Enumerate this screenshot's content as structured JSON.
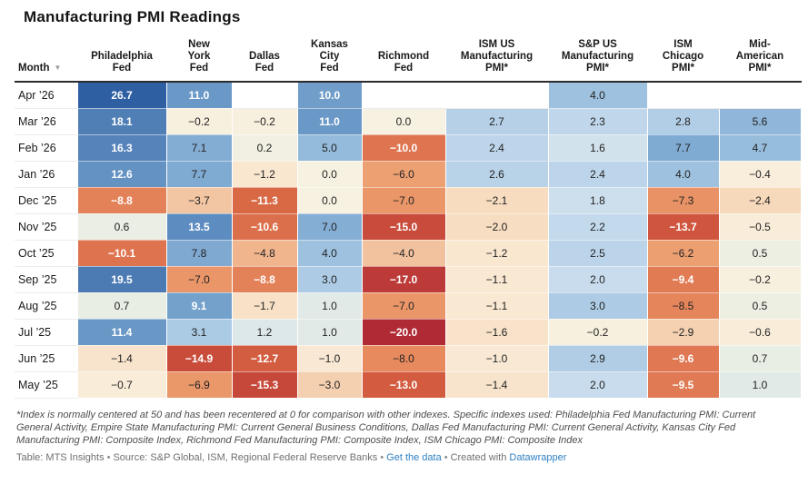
{
  "title": "Manufacturing PMI Readings",
  "colors": {
    "link": "#2f80c3",
    "header_border": "#2b2b2b",
    "row_border": "#ececec",
    "text_dark": "#232323",
    "text_white": "#ffffff",
    "footnote_text": "#4d4d4d",
    "footer_text": "#707070",
    "sort_arrow": "#9a9a9a"
  },
  "table_header": {
    "month_label": "Month",
    "sort_icon": "▼"
  },
  "chart_data": {
    "type": "table",
    "title": "Manufacturing PMI Readings",
    "columns": [
      "Month",
      "Philadelphia\nFed",
      "New\nYork\nFed",
      "Dallas\nFed",
      "Kansas\nCity\nFed",
      "Richmond\nFed",
      "ISM US\nManufacturing\nPMI*",
      "S&P US\nManufacturing\nPMI*",
      "ISM\nChicago\nPMI*",
      "Mid-\nAmerican\nPMI*"
    ],
    "rows": [
      {
        "month": "Apr ’26",
        "values": [
          26.7,
          11.0,
          null,
          10.0,
          null,
          null,
          4.0,
          null,
          null
        ]
      },
      {
        "month": "Mar ’26",
        "values": [
          18.1,
          -0.2,
          -0.2,
          11.0,
          0.0,
          2.7,
          2.3,
          2.8,
          5.6
        ]
      },
      {
        "month": "Feb ’26",
        "values": [
          16.3,
          7.1,
          0.2,
          5.0,
          -10.0,
          2.4,
          1.6,
          7.7,
          4.7
        ]
      },
      {
        "month": "Jan ’26",
        "values": [
          12.6,
          7.7,
          -1.2,
          0.0,
          -6.0,
          2.6,
          2.4,
          4.0,
          -0.4
        ]
      },
      {
        "month": "Dec ’25",
        "values": [
          -8.8,
          -3.7,
          -11.3,
          0.0,
          -7.0,
          -2.1,
          1.8,
          -7.3,
          -2.4
        ]
      },
      {
        "month": "Nov ’25",
        "values": [
          0.6,
          13.5,
          -10.6,
          7.0,
          -15.0,
          -2.0,
          2.2,
          -13.7,
          -0.5
        ]
      },
      {
        "month": "Oct ’25",
        "values": [
          -10.1,
          7.8,
          -4.8,
          4.0,
          -4.0,
          -1.2,
          2.5,
          -6.2,
          0.5
        ]
      },
      {
        "month": "Sep ’25",
        "values": [
          19.5,
          -7.0,
          -8.8,
          3.0,
          -17.0,
          -1.1,
          2.0,
          -9.4,
          -0.2
        ]
      },
      {
        "month": "Aug ’25",
        "values": [
          0.7,
          9.1,
          -1.7,
          1.0,
          -7.0,
          -1.1,
          3.0,
          -8.5,
          0.5
        ]
      },
      {
        "month": "Jul ’25",
        "values": [
          11.4,
          3.1,
          1.2,
          1.0,
          -20.0,
          -1.6,
          -0.2,
          -2.9,
          -0.6
        ]
      },
      {
        "month": "Jun ’25",
        "values": [
          -1.4,
          -14.9,
          -12.7,
          -1.0,
          -8.0,
          -1.0,
          2.9,
          -9.6,
          0.7
        ]
      },
      {
        "month": "May ’25",
        "values": [
          -0.7,
          -6.9,
          -15.3,
          -3.0,
          -13.0,
          -1.4,
          2.0,
          -9.5,
          1.0
        ]
      }
    ],
    "color_scale": {
      "type": "diverging",
      "stops": [
        [
          -20,
          "#b02a35"
        ],
        [
          -17,
          "#bc3a38"
        ],
        [
          -15,
          "#c84b3b"
        ],
        [
          -13,
          "#d25b40"
        ],
        [
          -12,
          "#d6633f"
        ],
        [
          -10,
          "#de7450"
        ],
        [
          -8,
          "#e78a5e"
        ],
        [
          -6,
          "#eda173"
        ],
        [
          -4,
          "#f2c29e"
        ],
        [
          -2,
          "#f7ddc2"
        ],
        [
          -1,
          "#f9e9d4"
        ],
        [
          -0.3,
          "#f9efdd"
        ],
        [
          0,
          "#f6f1e1"
        ],
        [
          0.7,
          "#e9eee4"
        ],
        [
          1.2,
          "#dce8e9"
        ],
        [
          2,
          "#c8dcee"
        ],
        [
          3,
          "#adcbe4"
        ],
        [
          4,
          "#9dc1df"
        ],
        [
          5,
          "#94bbdb"
        ],
        [
          7,
          "#85aed4"
        ],
        [
          9.1,
          "#74a1cb"
        ],
        [
          11,
          "#6b99c7"
        ],
        [
          12.6,
          "#6392c3"
        ],
        [
          13.5,
          "#5d8cc0"
        ],
        [
          16.3,
          "#5583ba"
        ],
        [
          19.5,
          "#4c7bb3"
        ],
        [
          26.7,
          "#2e5fa3"
        ]
      ],
      "white_text_above": 8.9,
      "white_text_below": -8.6
    }
  },
  "footnote": "*Index is normally centered at 50 and has been recentered at 0 for comparison with other indexes. Specific indexes used: Philadelphia Fed Manufacturing PMI: Current General Activity, Empire State Manufacturing PMI: Current General Business Conditions, Dallas Fed Manufacturing PMI: Current General Activity, Kansas City Fed Manufacturing PMI: Composite Index, Richmond Fed Manufacturing PMI: Composite Index, ISM Chicago PMI: Composite Index",
  "footer": {
    "table_credit": "Table: MTS Insights",
    "source": "Source: S&P Global, ISM, Regional Federal Reserve Banks",
    "get_data_link": "Get the data",
    "created_with": "Created with",
    "datawrapper_link": "Datawrapper",
    "separator": "•"
  }
}
